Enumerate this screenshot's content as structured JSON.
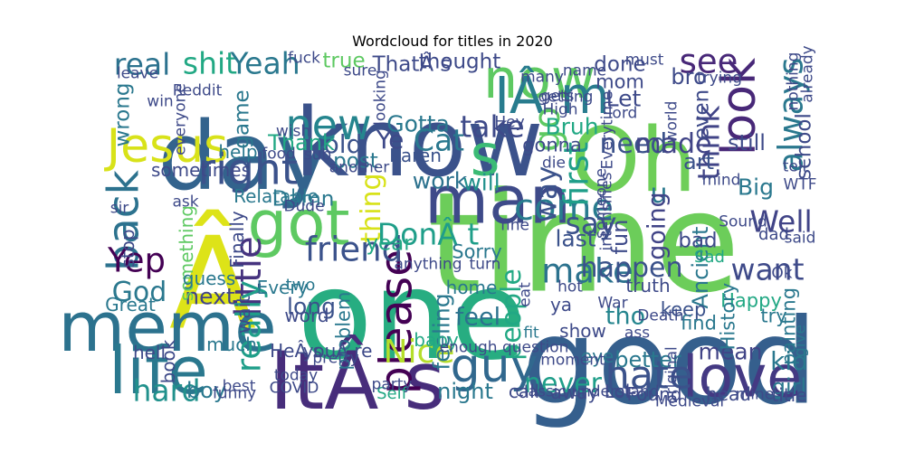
{
  "chart_data": {
    "type": "wordcloud",
    "title": "Wordcloud for titles in 2020",
    "words": [
      {
        "text": "time",
        "weight": 100,
        "color": "#6ccd5a"
      },
      {
        "text": "Â",
        "weight": 92,
        "color": "#dde318"
      },
      {
        "text": "one",
        "weight": 88,
        "color": "#27ad81"
      },
      {
        "text": "good",
        "weight": 85,
        "color": "#355f8d"
      },
      {
        "text": "day",
        "weight": 66,
        "color": "#33638d"
      },
      {
        "text": "know",
        "weight": 66,
        "color": "#3b528b"
      },
      {
        "text": "Oh",
        "weight": 62,
        "color": "#6ece58"
      },
      {
        "text": "ItÂ s",
        "weight": 55,
        "color": "#472d7b"
      },
      {
        "text": "meme",
        "weight": 47,
        "color": "#2c728e"
      },
      {
        "text": "man",
        "weight": 45,
        "color": "#3e4a89"
      },
      {
        "text": "life",
        "weight": 44,
        "color": "#2a788e"
      },
      {
        "text": "got",
        "weight": 42,
        "color": "#5ec962"
      },
      {
        "text": "love",
        "weight": 38,
        "color": "#443983"
      },
      {
        "text": "s",
        "weight": 38,
        "color": "#3bbb75"
      },
      {
        "text": "now",
        "weight": 36,
        "color": "#5ec962"
      },
      {
        "text": "IÂ m",
        "weight": 33,
        "color": "#287c8e"
      },
      {
        "text": "Jesus",
        "weight": 30,
        "color": "#d8e219"
      },
      {
        "text": "guy",
        "weight": 30,
        "color": "#31688e"
      },
      {
        "text": "look",
        "weight": 30,
        "color": "#482878"
      },
      {
        "text": "please",
        "weight": 28,
        "color": "#440154"
      },
      {
        "text": "back",
        "weight": 27,
        "color": "#2c728e"
      },
      {
        "text": "right",
        "weight": 27,
        "color": "#3b528b"
      },
      {
        "text": "new",
        "weight": 26,
        "color": "#25858e"
      },
      {
        "text": "hate",
        "weight": 24,
        "color": "#3b528b"
      },
      {
        "text": "come",
        "weight": 22,
        "color": "#287c8e"
      },
      {
        "text": "go",
        "weight": 22,
        "color": "#5ec962"
      },
      {
        "text": "little",
        "weight": 22,
        "color": "#46337f"
      },
      {
        "text": "make",
        "weight": 20,
        "color": "#2c728e"
      },
      {
        "text": "Yep",
        "weight": 20,
        "color": "#440154"
      },
      {
        "text": "friend",
        "weight": 20,
        "color": "#3b528b"
      },
      {
        "text": "always",
        "weight": 20,
        "color": "#2a788e"
      },
      {
        "text": "really",
        "weight": 20,
        "color": "#1f9e89"
      },
      {
        "text": "see",
        "weight": 20,
        "color": "#482878"
      },
      {
        "text": "first",
        "weight": 20,
        "color": "#1f9e89"
      },
      {
        "text": "Nice",
        "weight": 19,
        "color": "#b5de2b"
      },
      {
        "text": "DonÂ t",
        "weight": 17,
        "color": "#1f9e89"
      },
      {
        "text": "Cat",
        "weight": 17,
        "color": "#2a788e"
      },
      {
        "text": "take",
        "weight": 17,
        "color": "#3e4a89"
      },
      {
        "text": "think",
        "weight": 17,
        "color": "#414487"
      },
      {
        "text": "hard",
        "weight": 17,
        "color": "#21918c"
      },
      {
        "text": "shit",
        "weight": 17,
        "color": "#22a884"
      },
      {
        "text": "Yeah",
        "weight": 17,
        "color": "#2a788e"
      },
      {
        "text": "real",
        "weight": 17,
        "color": "#2c728e"
      },
      {
        "text": "say",
        "weight": 17,
        "color": "#3b528b"
      },
      {
        "text": "Well",
        "weight": 17,
        "color": "#414487"
      },
      {
        "text": "want",
        "weight": 17,
        "color": "#3e4a89"
      },
      {
        "text": "way",
        "weight": 16,
        "color": "#3b528b"
      },
      {
        "text": "people",
        "weight": 15,
        "color": "#22a884"
      },
      {
        "text": "happen",
        "weight": 15,
        "color": "#3b528b"
      },
      {
        "text": "thing",
        "weight": 15,
        "color": "#d8e219"
      },
      {
        "text": "need",
        "weight": 15,
        "color": "#3b528b"
      },
      {
        "text": "made",
        "weight": 15,
        "color": "#414487"
      },
      {
        "text": "never",
        "weight": 15,
        "color": "#1f9e89"
      },
      {
        "text": "God",
        "weight": 15,
        "color": "#2a788e"
      },
      {
        "text": "u",
        "weight": 15,
        "color": "#2a788e"
      },
      {
        "text": "old",
        "weight": 14,
        "color": "#3b528b"
      },
      {
        "text": "Ye",
        "weight": 14,
        "color": "#3e4a89"
      },
      {
        "text": "kid",
        "weight": 14,
        "color": "#2a788e"
      },
      {
        "text": "feel",
        "weight": 13,
        "color": "#2c728e"
      },
      {
        "text": "tho",
        "weight": 13,
        "color": "#25858e"
      },
      {
        "text": "going",
        "weight": 13,
        "color": "#414487"
      },
      {
        "text": "Big",
        "weight": 12,
        "color": "#2a788e"
      },
      {
        "text": "feeling",
        "weight": 12,
        "color": "#2a788e"
      },
      {
        "text": "long",
        "weight": 12,
        "color": "#3b528b"
      },
      {
        "text": "next",
        "weight": 12,
        "color": "#414487"
      },
      {
        "text": "mean",
        "weight": 12,
        "color": "#414487"
      },
      {
        "text": "will",
        "weight": 12,
        "color": "#21918c"
      },
      {
        "text": "work",
        "weight": 12,
        "color": "#2c728e"
      },
      {
        "text": "Gotta",
        "weight": 12,
        "color": "#2a788e"
      },
      {
        "text": "Bruh",
        "weight": 12,
        "color": "#22a884"
      },
      {
        "text": "Let",
        "weight": 12,
        "color": "#3e4a89"
      },
      {
        "text": "last",
        "weight": 12,
        "color": "#3b528b"
      },
      {
        "text": "night",
        "weight": 11,
        "color": "#2a788e"
      },
      {
        "text": "boy",
        "weight": 11,
        "color": "#2a788e"
      },
      {
        "text": "girl",
        "weight": 11,
        "color": "#2a788e"
      },
      {
        "text": "better",
        "weight": 11,
        "color": "#2a788e"
      },
      {
        "text": "still",
        "weight": 11,
        "color": "#3e4a89"
      },
      {
        "text": "art",
        "weight": 11,
        "color": "#3b528b"
      },
      {
        "text": "Thank",
        "weight": 11,
        "color": "#22a884"
      },
      {
        "text": "bro",
        "weight": 11,
        "color": "#3e4a89"
      },
      {
        "text": "Ancient",
        "weight": 11,
        "color": "#2a788e"
      },
      {
        "text": "fun",
        "weight": 11,
        "color": "#3e4a89"
      },
      {
        "text": "post",
        "weight": 10,
        "color": "#2a788e"
      },
      {
        "text": "true",
        "weight": 10,
        "color": "#5ec962"
      },
      {
        "text": "thought",
        "weight": 10,
        "color": "#3e4a89"
      },
      {
        "text": "done",
        "weight": 10,
        "color": "#3e4a89"
      },
      {
        "text": "ThatÂ s",
        "weight": 10,
        "color": "#3e4a89"
      },
      {
        "text": "wrong",
        "weight": 10,
        "color": "#2a788e"
      },
      {
        "text": "game",
        "weight": 10,
        "color": "#2a788e"
      },
      {
        "text": "even",
        "weight": 10,
        "color": "#3e4a89"
      },
      {
        "text": "school",
        "weight": 10,
        "color": "#3e4a89"
      },
      {
        "text": "Damn",
        "weight": 10,
        "color": "#2a788e"
      },
      {
        "text": "bad",
        "weight": 10,
        "color": "#3e4a89"
      },
      {
        "text": "year",
        "weight": 10,
        "color": "#22a884"
      },
      {
        "text": "Sorry",
        "weight": 9,
        "color": "#2a788e"
      },
      {
        "text": "problem",
        "weight": 9,
        "color": "#2a788e"
      },
      {
        "text": "Happy",
        "weight": 9,
        "color": "#22a884"
      },
      {
        "text": "keep",
        "weight": 9,
        "color": "#3b528b"
      },
      {
        "text": "History",
        "weight": 9,
        "color": "#2a788e"
      },
      {
        "text": "painting",
        "weight": 9,
        "color": "#2a788e"
      },
      {
        "text": "try",
        "weight": 9,
        "color": "#2a788e"
      },
      {
        "text": "find",
        "weight": 9,
        "color": "#2a788e"
      },
      {
        "text": "mom",
        "weight": 9,
        "color": "#3e4a89"
      },
      {
        "text": "gonna",
        "weight": 9,
        "color": "#3e4a89"
      },
      {
        "text": "Karen",
        "weight": 8,
        "color": "#3b528b"
      },
      {
        "text": "something",
        "weight": 8,
        "color": "#5ec962"
      },
      {
        "text": "stop",
        "weight": 8,
        "color": "#3e4a89"
      },
      {
        "text": "Finally",
        "weight": 8,
        "color": "#3e4a89"
      },
      {
        "text": "Great",
        "weight": 8,
        "color": "#2a788e"
      },
      {
        "text": "guess",
        "weight": 8,
        "color": "#2a788e"
      },
      {
        "text": "Every",
        "weight": 8,
        "color": "#2a788e"
      },
      {
        "text": "Relatable",
        "weight": 8,
        "color": "#2a788e"
      },
      {
        "text": "help",
        "weight": 8,
        "color": "#2a788e"
      },
      {
        "text": "sometimes",
        "weight": 8,
        "color": "#3e4a89"
      },
      {
        "text": "word",
        "weight": 8,
        "color": "#3e4a89"
      },
      {
        "text": "book",
        "weight": 8,
        "color": "#3e4a89"
      },
      {
        "text": "hell",
        "weight": 8,
        "color": "#3e4a89"
      },
      {
        "text": "much",
        "weight": 8,
        "color": "#2a788e"
      },
      {
        "text": "HeÂ s",
        "weight": 8,
        "color": "#3e4a89"
      },
      {
        "text": "youÂ re",
        "weight": 8,
        "color": "#3e4a89"
      },
      {
        "text": "wait",
        "weight": 8,
        "color": "#3e4a89"
      },
      {
        "text": "show",
        "weight": 8,
        "color": "#3e4a89"
      },
      {
        "text": "home",
        "weight": 8,
        "color": "#2a788e"
      },
      {
        "text": "ya",
        "weight": 8,
        "color": "#3e4a89"
      },
      {
        "text": "baby",
        "weight": 8,
        "color": "#22a884"
      },
      {
        "text": "eye",
        "weight": 8,
        "color": "#2a788e"
      },
      {
        "text": "away",
        "weight": 8,
        "color": "#3e4a89"
      },
      {
        "text": "call",
        "weight": 8,
        "color": "#3e4a89"
      },
      {
        "text": "Lol",
        "weight": 8,
        "color": "#3e4a89"
      },
      {
        "text": "Found",
        "weight": 8,
        "color": "#3e4a89"
      },
      {
        "text": "head",
        "weight": 8,
        "color": "#3e4a89"
      },
      {
        "text": "title",
        "weight": 8,
        "color": "#3e4a89"
      },
      {
        "text": "truth",
        "weight": 8,
        "color": "#3e4a89"
      },
      {
        "text": "dad",
        "weight": 7,
        "color": "#3e4a89"
      },
      {
        "text": "Sad",
        "weight": 7,
        "color": "#22a884"
      },
      {
        "text": "two",
        "weight": 7,
        "color": "#2a788e"
      },
      {
        "text": "Self",
        "weight": 7,
        "color": "#22a884"
      },
      {
        "text": "COVID",
        "weight": 6,
        "color": "#3e4a89"
      },
      {
        "text": "Medieval",
        "weight": 6,
        "color": "#3e4a89"
      },
      {
        "text": "mine",
        "weight": 6,
        "color": "#3e4a89"
      },
      {
        "text": "give",
        "weight": 6,
        "color": "#2a788e"
      },
      {
        "text": "fit",
        "weight": 6,
        "color": "#2a788e"
      },
      {
        "text": "ass",
        "weight": 6,
        "color": "#3e4a89"
      },
      {
        "text": "War",
        "weight": 6,
        "color": "#3e4a89"
      },
      {
        "text": "hot",
        "weight": 6,
        "color": "#3e4a89"
      },
      {
        "text": "eat",
        "weight": 6,
        "color": "#3e4a89"
      },
      {
        "text": "turn",
        "weight": 6,
        "color": "#3e4a89"
      },
      {
        "text": "fine",
        "weight": 6,
        "color": "#3e4a89"
      },
      {
        "text": "ask",
        "weight": 6,
        "color": "#3e4a89"
      },
      {
        "text": "sir",
        "weight": 6,
        "color": "#3e4a89"
      },
      {
        "text": "pretty",
        "weight": 6,
        "color": "#3e4a89"
      },
      {
        "text": "best",
        "weight": 6,
        "color": "#3e4a89"
      },
      {
        "text": "funny",
        "weight": 6,
        "color": "#3e4a89"
      },
      {
        "text": "today",
        "weight": 6,
        "color": "#3e4a89"
      },
      {
        "text": "party",
        "weight": 6,
        "color": "#3e4a89"
      },
      {
        "text": "moment",
        "weight": 6,
        "color": "#3e4a89"
      },
      {
        "text": "original",
        "weight": 6,
        "color": "#3e4a89"
      },
      {
        "text": "Death",
        "weight": 6,
        "color": "#3e4a89"
      },
      {
        "text": "Sound",
        "weight": 6,
        "color": "#3e4a89"
      },
      {
        "text": "said",
        "weight": 6,
        "color": "#3e4a89"
      },
      {
        "text": "Ok",
        "weight": 6,
        "color": "#3e4a89"
      },
      {
        "text": "tell",
        "weight": 6,
        "color": "#3e4a89"
      },
      {
        "text": "WTF",
        "weight": 6,
        "color": "#3e4a89"
      },
      {
        "text": "mind",
        "weight": 6,
        "color": "#3e4a89"
      },
      {
        "text": "world",
        "weight": 6,
        "color": "#3e4a89"
      },
      {
        "text": "lord",
        "weight": 6,
        "color": "#3e4a89"
      },
      {
        "text": "getting",
        "weight": 6,
        "color": "#3e4a89"
      },
      {
        "text": "High",
        "weight": 6,
        "color": "#3e4a89"
      },
      {
        "text": "gets",
        "weight": 6,
        "color": "#3e4a89"
      },
      {
        "text": "Hey",
        "weight": 6,
        "color": "#3e4a89"
      },
      {
        "text": "many",
        "weight": 6,
        "color": "#3e4a89"
      },
      {
        "text": "must",
        "weight": 6,
        "color": "#3e4a89"
      },
      {
        "text": "name",
        "weight": 6,
        "color": "#3e4a89"
      },
      {
        "text": "trying",
        "weight": 6,
        "color": "#3e4a89"
      },
      {
        "text": "nothing",
        "weight": 6,
        "color": "#3e4a89"
      },
      {
        "text": "already",
        "weight": 6,
        "color": "#3e4a89"
      },
      {
        "text": "fuck",
        "weight": 6,
        "color": "#3e4a89"
      },
      {
        "text": "sure",
        "weight": 6,
        "color": "#3e4a89"
      },
      {
        "text": "leave",
        "weight": 6,
        "color": "#3e4a89"
      },
      {
        "text": "Reddit",
        "weight": 6,
        "color": "#3e4a89"
      },
      {
        "text": "win",
        "weight": 6,
        "color": "#3e4a89"
      },
      {
        "text": "everyone",
        "weight": 6,
        "color": "#3e4a89"
      },
      {
        "text": "looking",
        "weight": 6,
        "color": "#3e4a89"
      },
      {
        "text": "wish",
        "weight": 6,
        "color": "#3e4a89"
      },
      {
        "text": "food",
        "weight": 6,
        "color": "#3e4a89"
      },
      {
        "text": "sub",
        "weight": 6,
        "color": "#3e4a89"
      },
      {
        "text": "Dude",
        "weight": 6,
        "color": "#3e4a89"
      },
      {
        "text": "another",
        "weight": 6,
        "color": "#3e4a89"
      },
      {
        "text": "die",
        "weight": 6,
        "color": "#3e4a89"
      },
      {
        "text": "someone",
        "weight": 6,
        "color": "#3e4a89"
      },
      {
        "text": "intensifies",
        "weight": 6,
        "color": "#3e4a89"
      },
      {
        "text": "Everytime",
        "weight": 6,
        "color": "#3e4a89"
      },
      {
        "text": "anything",
        "weight": 6,
        "color": "#3e4a89"
      },
      {
        "text": "enough question",
        "weight": 6,
        "color": "#3e4a89"
      },
      {
        "text": "classic understand",
        "weight": 6,
        "color": "#3e4a89"
      }
    ]
  }
}
